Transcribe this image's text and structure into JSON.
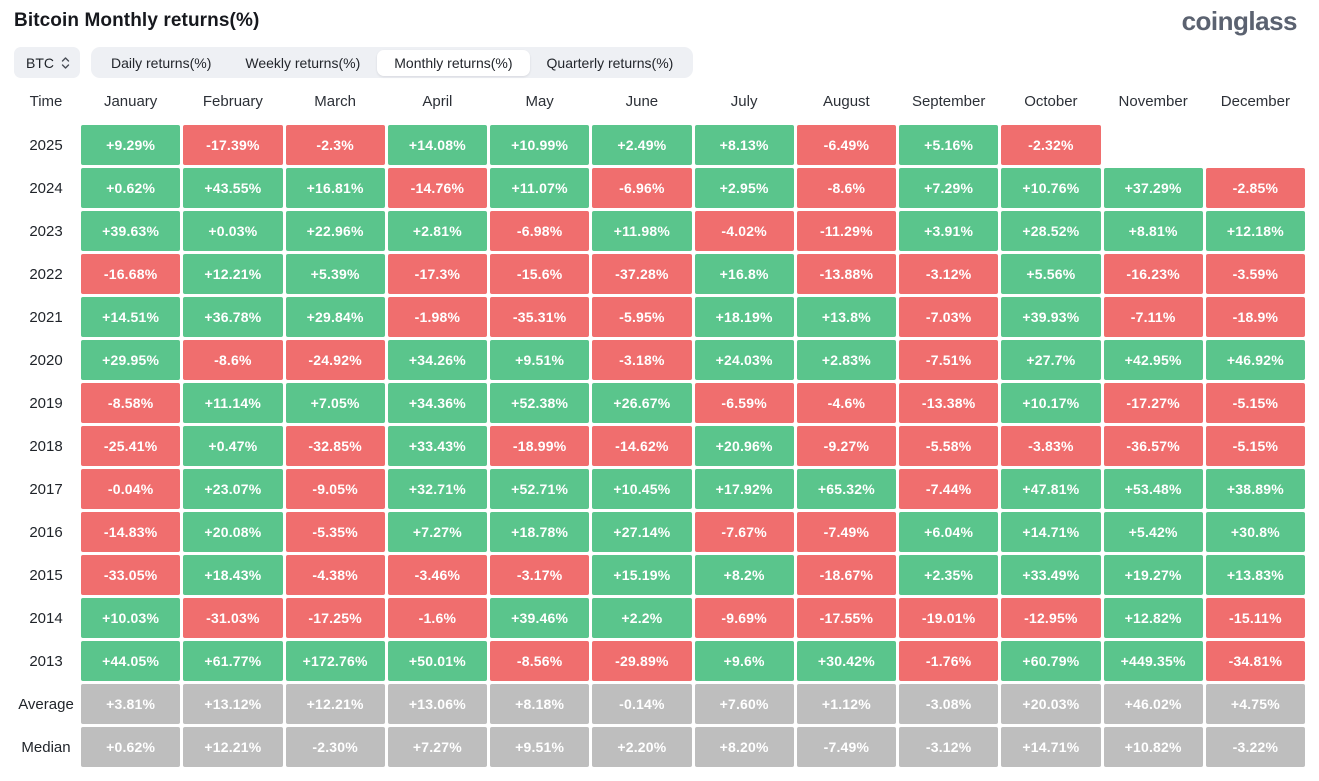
{
  "header": {
    "title": "Bitcoin Monthly returns(%)",
    "logo_text": "coinglass"
  },
  "controls": {
    "symbol_select": {
      "value": "BTC",
      "icon": "updown-icon"
    },
    "tabs": [
      {
        "label": "Daily returns(%)",
        "active": false
      },
      {
        "label": "Weekly returns(%)",
        "active": false
      },
      {
        "label": "Monthly returns(%)",
        "active": true
      },
      {
        "label": "Quarterly returns(%)",
        "active": false
      }
    ]
  },
  "colors": {
    "positive": "#5ac58c",
    "negative": "#f06e6e",
    "summary": "#bebebe"
  },
  "chart_data": {
    "type": "table",
    "title": "Bitcoin Monthly returns(%)",
    "time_header": "Time",
    "columns": [
      "January",
      "February",
      "March",
      "April",
      "May",
      "June",
      "July",
      "August",
      "September",
      "October",
      "November",
      "December"
    ],
    "rows": [
      {
        "label": "2025",
        "kind": "year",
        "values": [
          "+9.29%",
          "-17.39%",
          "-2.3%",
          "+14.08%",
          "+10.99%",
          "+2.49%",
          "+8.13%",
          "-6.49%",
          "+5.16%",
          "-2.32%",
          null,
          null
        ]
      },
      {
        "label": "2024",
        "kind": "year",
        "values": [
          "+0.62%",
          "+43.55%",
          "+16.81%",
          "-14.76%",
          "+11.07%",
          "-6.96%",
          "+2.95%",
          "-8.6%",
          "+7.29%",
          "+10.76%",
          "+37.29%",
          "-2.85%"
        ]
      },
      {
        "label": "2023",
        "kind": "year",
        "values": [
          "+39.63%",
          "+0.03%",
          "+22.96%",
          "+2.81%",
          "-6.98%",
          "+11.98%",
          "-4.02%",
          "-11.29%",
          "+3.91%",
          "+28.52%",
          "+8.81%",
          "+12.18%"
        ]
      },
      {
        "label": "2022",
        "kind": "year",
        "values": [
          "-16.68%",
          "+12.21%",
          "+5.39%",
          "-17.3%",
          "-15.6%",
          "-37.28%",
          "+16.8%",
          "-13.88%",
          "-3.12%",
          "+5.56%",
          "-16.23%",
          "-3.59%"
        ]
      },
      {
        "label": "2021",
        "kind": "year",
        "values": [
          "+14.51%",
          "+36.78%",
          "+29.84%",
          "-1.98%",
          "-35.31%",
          "-5.95%",
          "+18.19%",
          "+13.8%",
          "-7.03%",
          "+39.93%",
          "-7.11%",
          "-18.9%"
        ]
      },
      {
        "label": "2020",
        "kind": "year",
        "values": [
          "+29.95%",
          "-8.6%",
          "-24.92%",
          "+34.26%",
          "+9.51%",
          "-3.18%",
          "+24.03%",
          "+2.83%",
          "-7.51%",
          "+27.7%",
          "+42.95%",
          "+46.92%"
        ]
      },
      {
        "label": "2019",
        "kind": "year",
        "values": [
          "-8.58%",
          "+11.14%",
          "+7.05%",
          "+34.36%",
          "+52.38%",
          "+26.67%",
          "-6.59%",
          "-4.6%",
          "-13.38%",
          "+10.17%",
          "-17.27%",
          "-5.15%"
        ]
      },
      {
        "label": "2018",
        "kind": "year",
        "values": [
          "-25.41%",
          "+0.47%",
          "-32.85%",
          "+33.43%",
          "-18.99%",
          "-14.62%",
          "+20.96%",
          "-9.27%",
          "-5.58%",
          "-3.83%",
          "-36.57%",
          "-5.15%"
        ]
      },
      {
        "label": "2017",
        "kind": "year",
        "values": [
          "-0.04%",
          "+23.07%",
          "-9.05%",
          "+32.71%",
          "+52.71%",
          "+10.45%",
          "+17.92%",
          "+65.32%",
          "-7.44%",
          "+47.81%",
          "+53.48%",
          "+38.89%"
        ]
      },
      {
        "label": "2016",
        "kind": "year",
        "values": [
          "-14.83%",
          "+20.08%",
          "-5.35%",
          "+7.27%",
          "+18.78%",
          "+27.14%",
          "-7.67%",
          "-7.49%",
          "+6.04%",
          "+14.71%",
          "+5.42%",
          "+30.8%"
        ]
      },
      {
        "label": "2015",
        "kind": "year",
        "values": [
          "-33.05%",
          "+18.43%",
          "-4.38%",
          "-3.46%",
          "-3.17%",
          "+15.19%",
          "+8.2%",
          "-18.67%",
          "+2.35%",
          "+33.49%",
          "+19.27%",
          "+13.83%"
        ]
      },
      {
        "label": "2014",
        "kind": "year",
        "values": [
          "+10.03%",
          "-31.03%",
          "-17.25%",
          "-1.6%",
          "+39.46%",
          "+2.2%",
          "-9.69%",
          "-17.55%",
          "-19.01%",
          "-12.95%",
          "+12.82%",
          "-15.11%"
        ]
      },
      {
        "label": "2013",
        "kind": "year",
        "values": [
          "+44.05%",
          "+61.77%",
          "+172.76%",
          "+50.01%",
          "-8.56%",
          "-29.89%",
          "+9.6%",
          "+30.42%",
          "-1.76%",
          "+60.79%",
          "+449.35%",
          "-34.81%"
        ]
      },
      {
        "label": "Average",
        "kind": "summary",
        "values": [
          "+3.81%",
          "+13.12%",
          "+12.21%",
          "+13.06%",
          "+8.18%",
          "-0.14%",
          "+7.60%",
          "+1.12%",
          "-3.08%",
          "+20.03%",
          "+46.02%",
          "+4.75%"
        ]
      },
      {
        "label": "Median",
        "kind": "summary",
        "values": [
          "+0.62%",
          "+12.21%",
          "-2.30%",
          "+7.27%",
          "+9.51%",
          "+2.20%",
          "+8.20%",
          "-7.49%",
          "-3.12%",
          "+14.71%",
          "+10.82%",
          "-3.22%"
        ]
      }
    ]
  }
}
